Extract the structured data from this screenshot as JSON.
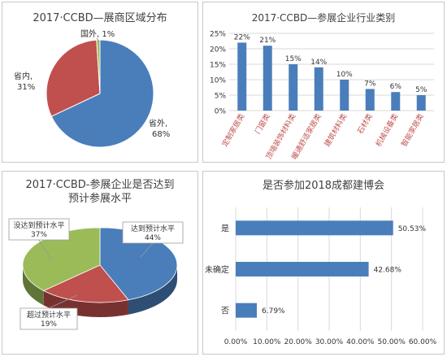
{
  "chart_data": [
    {
      "type": "pie",
      "title": "2017·CCBD—展商区域分布",
      "categories": [
        "省外",
        "省内",
        "国外"
      ],
      "values": [
        68,
        31,
        1
      ],
      "value_labels": [
        "68%",
        "31%",
        "1%"
      ],
      "colors": [
        "#4a7ebb",
        "#c0504d",
        "#9bbb59"
      ]
    },
    {
      "type": "bar",
      "title": "2017·CCBD—参展企业行业类别",
      "categories": [
        "定制家居类",
        "门窗类",
        "顶墙装饰材料类",
        "暖通舒适家居类",
        "建筑材料类",
        "石材类",
        "机械设备类",
        "智能家居类"
      ],
      "values": [
        22,
        21,
        15,
        14,
        10,
        7,
        6,
        5
      ],
      "value_labels": [
        "22%",
        "21%",
        "15%",
        "14%",
        "10%",
        "7%",
        "6%",
        "5%"
      ],
      "ylim": [
        0,
        25
      ],
      "yticks": [
        "0%",
        "5%",
        "10%",
        "15%",
        "20%",
        "25%"
      ],
      "color": "#4a7ebb",
      "grid": true
    },
    {
      "type": "pie",
      "title_lines": [
        "2017·CCBD-参展企业是否达到",
        "预计参展水平"
      ],
      "categories": [
        "达到预计水平",
        "超过预计水平",
        "没达到预计水平"
      ],
      "values": [
        44,
        19,
        37
      ],
      "value_labels": [
        "44%",
        "19%",
        "37%"
      ],
      "colors": [
        "#4a7ebb",
        "#c0504d",
        "#9bbb59"
      ]
    },
    {
      "type": "bar",
      "orientation": "horizontal",
      "title": "是否参加2018成都建博会",
      "categories": [
        "是",
        "未确定",
        "否"
      ],
      "values": [
        50.53,
        42.68,
        6.79
      ],
      "value_labels": [
        "50.53%",
        "42.68%",
        "6.79%"
      ],
      "xlim": [
        0,
        60
      ],
      "xticks": [
        "0.00%",
        "10.00%",
        "20.00%",
        "30.00%",
        "40.00%",
        "50.00%",
        "60.00%"
      ],
      "color": "#4a7ebb",
      "grid": true
    }
  ]
}
